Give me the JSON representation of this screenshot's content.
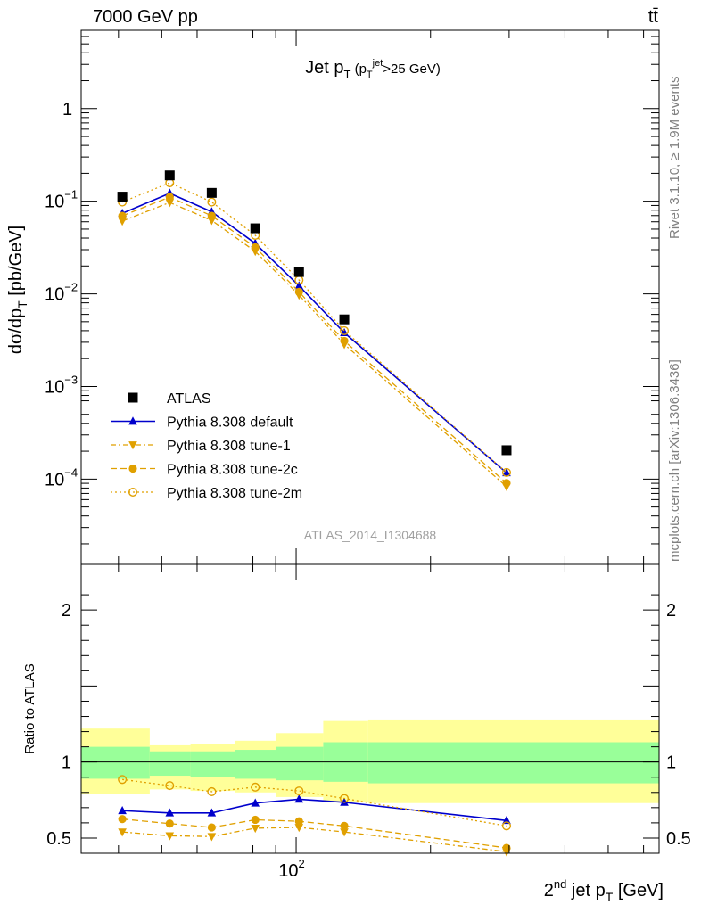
{
  "header": {
    "left": "7000 GeV pp",
    "right": "tt̄"
  },
  "side_labels": {
    "rivet": "Rivet 3.1.10, ≥ 1.9M events",
    "mcplots": "mcplots.cern.ch [arXiv:1306.3436]"
  },
  "watermark": "ATLAS_2014_I1304688",
  "colors": {
    "data": "#000000",
    "default": "#0000cc",
    "tune": "#e0a000",
    "band_inner": "#99ff99",
    "band_outer": "#ffff99"
  },
  "chart_data": [
    {
      "type": "scatter",
      "title": "Jet p_T (p_T^jet > 25 GeV)",
      "ylabel": "dσ/dp_T [pb/GeV]",
      "xscale": "log",
      "yscale": "log",
      "xlim": [
        33,
        650
      ],
      "ylim": [
        1.2e-05,
        7
      ],
      "yticks": [
        {
          "v": 0.0001,
          "base": "10",
          "exp": "−4"
        },
        {
          "v": 0.001,
          "base": "10",
          "exp": "−3"
        },
        {
          "v": 0.01,
          "base": "10",
          "exp": "−2"
        },
        {
          "v": 0.1,
          "base": "10",
          "exp": "−1"
        },
        {
          "v": 1,
          "base": "1",
          "exp": ""
        }
      ],
      "legend_position": "lower-left",
      "x": [
        40.8,
        52.1,
        64.7,
        81.0,
        101.5,
        128.2,
        296
      ],
      "series": [
        {
          "name": "ATLAS",
          "style": "data",
          "marker": "square",
          "values": [
            0.112,
            0.19,
            0.123,
            0.051,
            0.0172,
            0.0053,
            0.000205
          ]
        },
        {
          "name": "Pythia 8.308 default",
          "style": "default",
          "marker": "triangle-up",
          "dash": "",
          "values": [
            0.074,
            0.122,
            0.077,
            0.035,
            0.0122,
            0.0038,
            0.000117
          ]
        },
        {
          "name": "Pythia 8.308 tune-1",
          "style": "tune",
          "marker": "triangle-down",
          "dash": "6 3 2 3",
          "values": [
            0.061,
            0.097,
            0.062,
            0.0287,
            0.0097,
            0.00285,
            8.3e-05
          ]
        },
        {
          "name": "Pythia 8.308 tune-2c",
          "style": "tune",
          "marker": "circle",
          "dash": "7 4",
          "values": [
            0.0695,
            0.111,
            0.0695,
            0.0318,
            0.0105,
            0.0031,
            9.05e-05
          ]
        },
        {
          "name": "Pythia 8.308 tune-2m",
          "style": "tune",
          "marker": "open-circle",
          "dash": "2 3",
          "values": [
            0.098,
            0.158,
            0.098,
            0.0428,
            0.0141,
            0.004,
            0.000118
          ]
        }
      ]
    },
    {
      "type": "scatter",
      "ylabel": "Ratio to ATLAS",
      "xlabel_main": "2",
      "xlabel_sup": "nd",
      "xlabel_rest": " jet p",
      "xlabel_sub": "T",
      "xlabel_unit": " [GeV]",
      "xscale": "log",
      "xlim": [
        33,
        650
      ],
      "ylim": [
        0.4,
        2.3
      ],
      "yticks": [
        {
          "v": 0.5,
          "label": "0.5"
        },
        {
          "v": 1,
          "label": "1"
        },
        {
          "v": 2,
          "label": "2"
        }
      ],
      "xtick_label": {
        "v": 100,
        "base": "10",
        "exp": "2"
      },
      "bin_edges": [
        33,
        47,
        58,
        73,
        90,
        115,
        145,
        650
      ],
      "band_inner": [
        [
          0.89,
          1.1
        ],
        [
          0.91,
          1.07
        ],
        [
          0.9,
          1.07
        ],
        [
          0.89,
          1.08
        ],
        [
          0.88,
          1.1
        ],
        [
          0.87,
          1.13
        ],
        [
          0.86,
          1.13
        ]
      ],
      "band_outer": [
        [
          0.79,
          1.22
        ],
        [
          0.82,
          1.11
        ],
        [
          0.81,
          1.12
        ],
        [
          0.8,
          1.14
        ],
        [
          0.77,
          1.19
        ],
        [
          0.74,
          1.27
        ],
        [
          0.73,
          1.28
        ]
      ],
      "x": [
        40.8,
        52.1,
        64.7,
        81.0,
        101.5,
        128.2,
        296
      ],
      "series": [
        {
          "style": "default",
          "marker": "triangle-up",
          "dash": "",
          "values": [
            0.68,
            0.665,
            0.665,
            0.73,
            0.755,
            0.735,
            0.615
          ]
        },
        {
          "style": "tune",
          "marker": "triangle-down",
          "dash": "6 3 2 3",
          "values": [
            0.54,
            0.515,
            0.51,
            0.565,
            0.57,
            0.54,
            0.41
          ]
        },
        {
          "style": "tune",
          "marker": "circle",
          "dash": "7 4",
          "values": [
            0.625,
            0.595,
            0.57,
            0.62,
            0.61,
            0.58,
            0.435
          ]
        },
        {
          "style": "tune",
          "marker": "open-circle",
          "dash": "2 3",
          "values": [
            0.885,
            0.845,
            0.805,
            0.835,
            0.81,
            0.76,
            0.58
          ]
        }
      ]
    }
  ]
}
